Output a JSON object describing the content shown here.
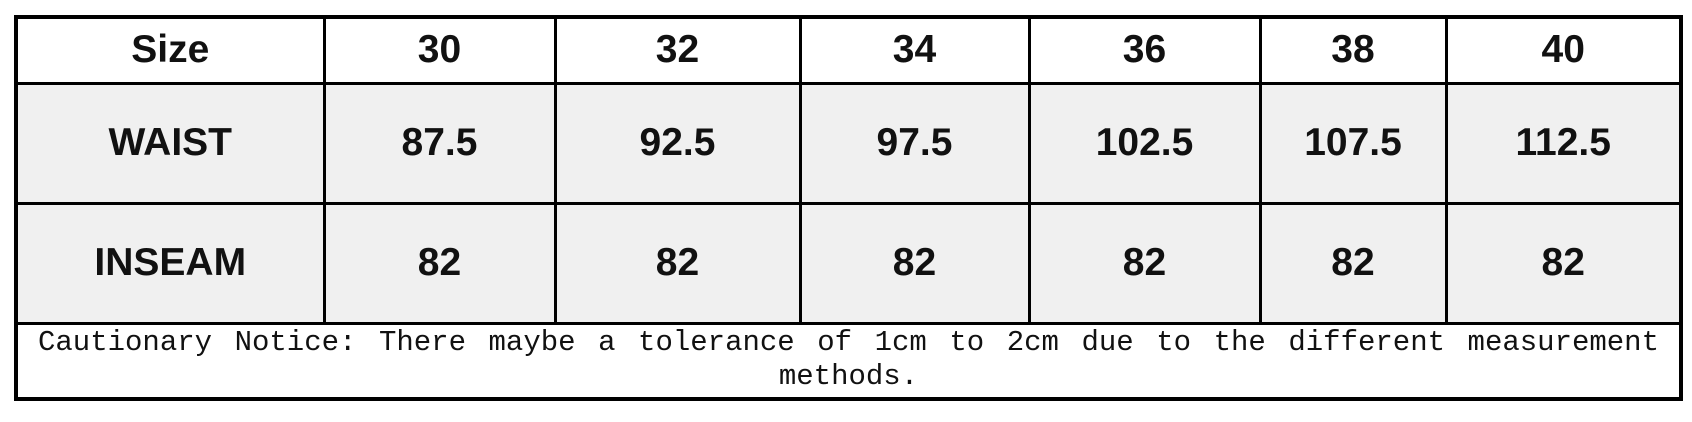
{
  "table": {
    "corner_label": "Size",
    "sizes": [
      "30",
      "32",
      "34",
      "36",
      "38",
      "40"
    ],
    "rows": [
      {
        "label": "WAIST",
        "values": [
          "87.5",
          "92.5",
          "97.5",
          "102.5",
          "107.5",
          "112.5"
        ]
      },
      {
        "label": "INSEAM",
        "values": [
          "82",
          "82",
          "82",
          "82",
          "82",
          "82"
        ]
      }
    ],
    "notice": "Cautionary Notice: There maybe a tolerance of 1cm to 2cm due to the different measurement methods.",
    "colors": {
      "border": "#000000",
      "header_fill": "#ffffff",
      "row_fill": "#f0f0f0",
      "text": "#111111"
    }
  },
  "chart_data": {
    "type": "table",
    "columns": [
      "Size",
      "30",
      "32",
      "34",
      "36",
      "38",
      "40"
    ],
    "rows": [
      [
        "WAIST",
        87.5,
        92.5,
        97.5,
        102.5,
        107.5,
        112.5
      ],
      [
        "INSEAM",
        82,
        82,
        82,
        82,
        82,
        82
      ]
    ],
    "notes": "Cautionary Notice: There maybe a tolerance of 1cm to 2cm due to the different measurement methods."
  }
}
